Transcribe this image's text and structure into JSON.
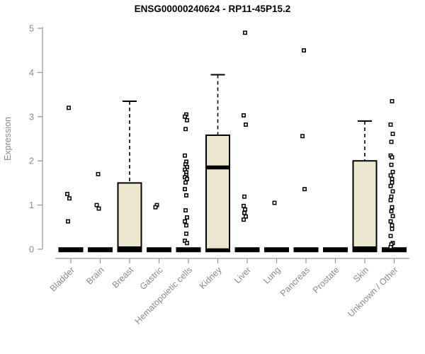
{
  "chart_data": {
    "type": "boxplot",
    "title": "ENSG00000240624 - RP11-45P15.2",
    "ylabel": "Expression",
    "xlabel": "",
    "ylim": [
      0,
      5
    ],
    "yticks": [
      0,
      1,
      2,
      3,
      4,
      5
    ],
    "grid": false,
    "legend": "none",
    "categories": [
      "Bladder",
      "Brain",
      "Breast",
      "Gastric",
      "Hematopoietic cells",
      "Kidney",
      "Liver",
      "Lung",
      "Pancreas",
      "Prostate",
      "Skin",
      "Unknown / Other"
    ],
    "boxes": [
      {
        "category": "Bladder",
        "whisker_low": 0,
        "q1": 0,
        "median": 0,
        "q3": 0,
        "whisker_high": 0,
        "outliers": [
          3.2,
          1.25,
          1.15,
          0.63
        ]
      },
      {
        "category": "Brain",
        "whisker_low": 0,
        "q1": 0,
        "median": 0,
        "q3": 0,
        "whisker_high": 0,
        "outliers": [
          1.7,
          1.0,
          0.92
        ]
      },
      {
        "category": "Breast",
        "whisker_low": 0,
        "q1": 0,
        "median": 0.02,
        "q3": 1.5,
        "whisker_high": 3.35,
        "outliers": []
      },
      {
        "category": "Gastric",
        "whisker_low": 0,
        "q1": 0,
        "median": 0,
        "q3": 0,
        "whisker_high": 0,
        "outliers": [
          1.0,
          0.95
        ]
      },
      {
        "category": "Hematopoietic cells",
        "whisker_low": 0,
        "q1": 0,
        "median": 0,
        "q3": 0,
        "whisker_high": 0,
        "outliers": [
          3.05,
          3.0,
          2.92,
          2.72,
          2.12,
          1.98,
          1.92,
          1.86,
          1.8,
          1.74,
          1.68,
          1.63,
          1.59,
          1.51,
          1.36,
          1.22,
          0.88,
          0.72,
          0.63,
          0.54,
          0.35,
          0.19,
          0.14
        ]
      },
      {
        "category": "Kidney",
        "whisker_low": 0,
        "q1": 0,
        "median": 1.85,
        "q3": 2.58,
        "whisker_high": 3.95,
        "outliers": []
      },
      {
        "category": "Liver",
        "whisker_low": 0,
        "q1": 0,
        "median": 0,
        "q3": 0,
        "whisker_high": 0,
        "outliers": [
          4.9,
          3.03,
          2.82,
          1.19,
          0.98,
          0.9,
          0.82,
          0.74,
          0.67
        ]
      },
      {
        "category": "Lung",
        "whisker_low": 0,
        "q1": 0,
        "median": 0,
        "q3": 0,
        "whisker_high": 0,
        "outliers": [
          1.05
        ]
      },
      {
        "category": "Pancreas",
        "whisker_low": 0,
        "q1": 0,
        "median": 0,
        "q3": 0,
        "whisker_high": 0,
        "outliers": [
          4.5,
          2.56,
          1.36
        ]
      },
      {
        "category": "Prostate",
        "whisker_low": 0,
        "q1": 0,
        "median": 0,
        "q3": 0,
        "whisker_high": 0,
        "outliers": []
      },
      {
        "category": "Skin",
        "whisker_low": 0,
        "q1": 0,
        "median": 0.02,
        "q3": 2.0,
        "whisker_high": 2.9,
        "outliers": []
      },
      {
        "category": "Unknown / Other",
        "whisker_low": 0,
        "q1": 0,
        "median": 0,
        "q3": 0,
        "whisker_high": 0,
        "outliers": [
          3.35,
          2.82,
          2.61,
          2.43,
          2.12,
          2.08,
          1.91,
          1.75,
          1.67,
          1.59,
          1.51,
          1.43,
          1.31,
          1.19,
          1.11,
          0.95,
          0.86,
          0.75,
          0.63,
          0.54,
          0.46,
          0.3,
          0.14,
          0.11,
          0.05
        ]
      }
    ],
    "colors": {
      "box_fill": "#ECE7CE",
      "box_border": "#000000",
      "median": "#000000",
      "outlier_stroke": "#000000",
      "outlier_fill": "#ffffff",
      "axis_text": "#8a8a8a",
      "axis_line": "#9a9a9a",
      "title_color": "#000000"
    }
  }
}
